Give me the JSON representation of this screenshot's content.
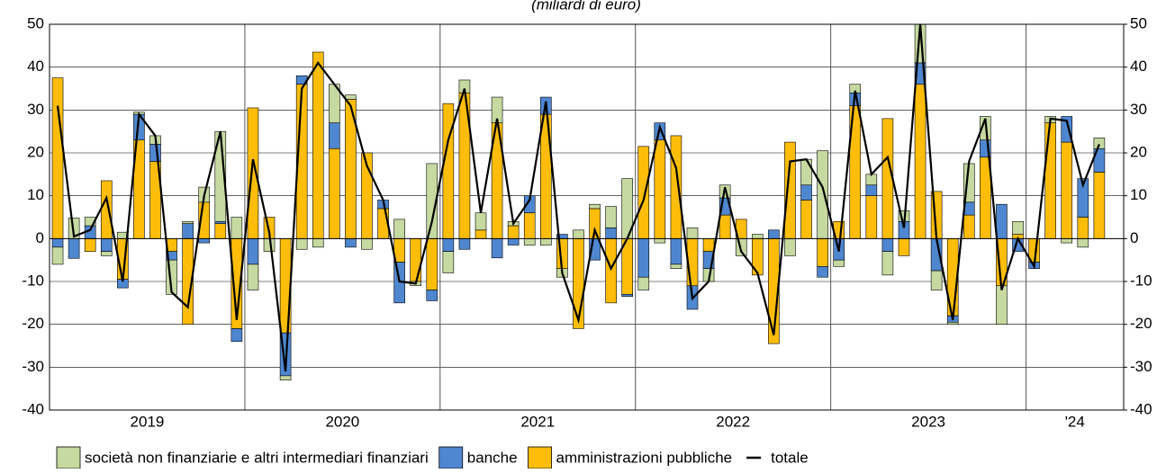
{
  "chart_data": {
    "type": "bar",
    "stacked": true,
    "subtitle": "(miliardi di euro)",
    "categories": [
      null,
      null,
      null,
      null,
      null,
      null,
      null,
      null,
      null,
      null,
      null,
      null,
      null,
      null,
      null,
      null,
      null,
      null,
      null,
      null,
      null,
      null,
      null,
      null,
      null,
      null,
      null,
      null,
      null,
      null,
      null,
      null,
      null,
      null,
      null,
      null,
      null,
      null,
      null,
      null,
      null,
      null,
      null,
      null,
      null,
      null,
      null,
      null,
      null,
      null,
      null,
      null,
      null,
      null,
      null,
      null,
      null,
      null,
      null,
      null,
      null,
      null,
      null,
      null,
      null
    ],
    "year_labels": [
      "2019",
      "2020",
      "2021",
      "2022",
      "2023",
      "'24"
    ],
    "series": [
      {
        "name": "società non finanziarie e altri intermediari finanziari",
        "type": "bar",
        "color": "#c5d9a0",
        "values": [
          -4,
          4.8,
          2,
          -1,
          1.5,
          0.5,
          2,
          -8,
          0.5,
          3.5,
          21,
          5,
          -6,
          -3,
          -1,
          -2.5,
          -2,
          9,
          1,
          -2.5,
          0,
          4.5,
          -1,
          17.5,
          -5,
          3,
          4,
          6,
          1,
          -1.5,
          -1.5,
          -2,
          2,
          1,
          5,
          14,
          -3,
          -1,
          -1,
          2.5,
          -3,
          3,
          -4,
          1,
          0,
          -4,
          6,
          20.5,
          -1.5,
          2,
          2.5,
          -5.5,
          2.5,
          9,
          -4.5,
          -0.5,
          9,
          5.5,
          -9,
          3,
          0,
          1.5,
          -1,
          -2,
          2.5
        ]
      },
      {
        "name": "banche",
        "type": "bar",
        "color": "#4f86d0",
        "values": [
          -2,
          -4.6,
          3,
          -3,
          -2,
          6,
          4,
          -2,
          3.5,
          -1,
          0.5,
          -3,
          -6,
          0,
          -10,
          2,
          0,
          6,
          -2,
          0,
          2,
          -9.5,
          0,
          -2.5,
          -3,
          -2.5,
          0,
          -4.5,
          -1.5,
          4,
          4,
          1,
          0,
          -5,
          2.5,
          -0.5,
          -9,
          4,
          -6,
          -5.5,
          -4,
          4,
          0,
          0,
          2,
          0,
          3.5,
          -2.5,
          -5,
          3,
          2.5,
          -3,
          4,
          5,
          -7.5,
          -1.5,
          3,
          4,
          8,
          -3,
          -1.5,
          0,
          6,
          9,
          5.5
        ]
      },
      {
        "name": "amministrazioni pubbliche",
        "type": "bar",
        "color": "#fdbd0a",
        "values": [
          37.5,
          0,
          -3,
          13.5,
          -9.5,
          23,
          18,
          -3,
          -20,
          8.5,
          3.5,
          -21,
          30.5,
          5,
          -22,
          36,
          43.5,
          21,
          32.5,
          20,
          7,
          -5.5,
          -10,
          -12,
          31.5,
          34,
          2,
          27,
          3,
          6,
          29,
          -7,
          -21,
          7,
          -15,
          -13,
          21.5,
          23,
          24,
          -11,
          -3,
          5.5,
          4.5,
          -8.5,
          -24.5,
          22.5,
          9,
          -6.5,
          4,
          31,
          10,
          28,
          -4,
          36,
          11,
          -18,
          5.5,
          19,
          -11,
          1,
          -5.5,
          27,
          22.5,
          5,
          15.5
        ]
      },
      {
        "name": "totale",
        "type": "line",
        "color": "#000000",
        "values": [
          31,
          0.5,
          2,
          9.5,
          -10,
          29,
          24,
          -12.5,
          -16,
          10,
          25,
          -19,
          18.5,
          1.5,
          -31,
          35,
          41,
          36,
          31,
          17,
          9,
          -10,
          -10.5,
          4,
          23,
          35,
          6,
          28,
          3.5,
          9,
          32,
          -8,
          -19,
          2,
          -7,
          0,
          9,
          26,
          16.5,
          -14,
          -10,
          12,
          -3,
          -8,
          -22.5,
          18,
          18.5,
          12,
          -3,
          34.5,
          15,
          19,
          2.5,
          50,
          0,
          -19,
          18,
          28,
          -12,
          0,
          -6.5,
          28,
          27.5,
          12.5,
          22
        ]
      }
    ],
    "ylim": [
      -40,
      50
    ],
    "yticks": [
      -40,
      -30,
      -20,
      -10,
      0,
      10,
      20,
      30,
      40,
      50
    ],
    "y2lim": [
      -40,
      50
    ],
    "y2ticks": [
      -40,
      -30,
      -20,
      -10,
      0,
      10,
      20,
      30,
      40,
      50
    ],
    "grid": true,
    "legend": "bottom"
  }
}
